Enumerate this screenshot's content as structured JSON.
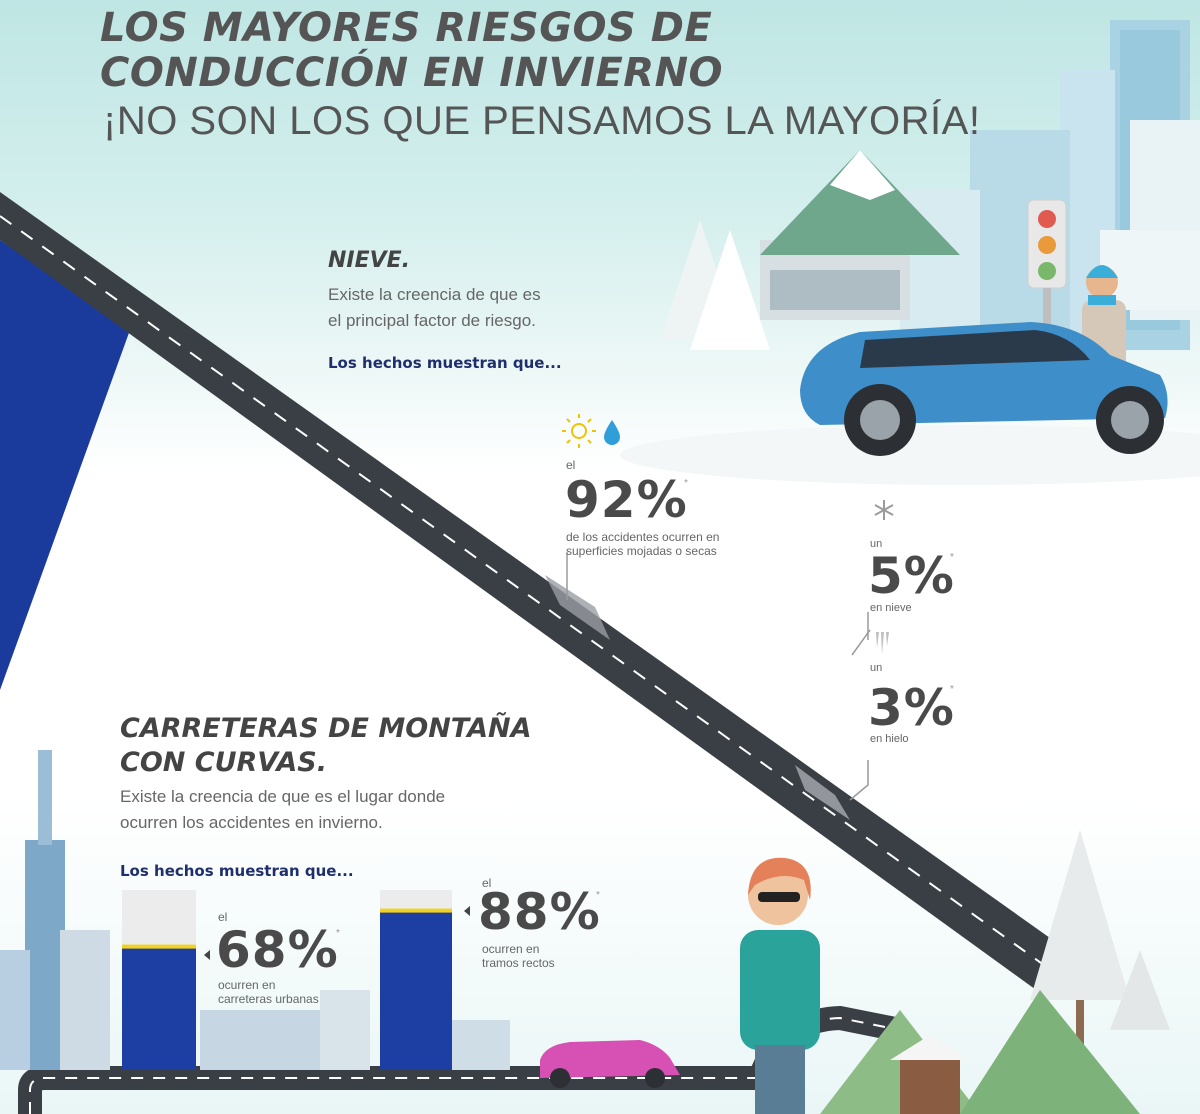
{
  "header": {
    "title_line1": "LOS MAYORES RIESGOS DE",
    "title_line2": "CONDUCCIÓN EN INVIERNO",
    "subtitle": "¡NO SON LOS QUE PENSAMOS LA MAYORÍA!"
  },
  "section_snow": {
    "heading": "NIEVE.",
    "belief_line1": "Existe la creencia de que es",
    "belief_line2": "el principal factor de riesgo.",
    "facts_label": "Los hechos muestran que...",
    "stat_main": {
      "prefix": "el",
      "value": "92%",
      "asterisk": "*",
      "desc_line1": "de los accidentes ocurren en",
      "desc_line2": "superficies mojadas o secas",
      "icons": [
        "sun-icon",
        "water-drop-icon"
      ]
    },
    "stat_snow": {
      "prefix": "un",
      "value": "5%",
      "asterisk": "*",
      "desc": "en nieve",
      "icon": "snowflake-icon"
    },
    "stat_ice": {
      "prefix": "un",
      "value": "3%",
      "asterisk": "*",
      "desc": "en hielo",
      "icon": "icicle-icon"
    }
  },
  "section_mountain": {
    "heading_line1": "CARRETERAS DE MONTAÑA",
    "heading_line2": "CON CURVAS.",
    "belief_line1": "Existe la creencia de que es el lugar donde",
    "belief_line2": "ocurren los accidentes en invierno.",
    "facts_label": "Los hechos muestran que...",
    "stat_urban": {
      "prefix": "el",
      "value": "68%",
      "asterisk": "*",
      "desc_line1": "ocurren en",
      "desc_line2": "carreteras urbanas",
      "fill": 0.68
    },
    "stat_straight": {
      "prefix": "el",
      "value": "88%",
      "asterisk": "*",
      "desc_line1": "ocurren en",
      "desc_line2": "tramos rectos",
      "fill": 0.88
    }
  },
  "colors": {
    "brand_blue": "#1b3b9c",
    "bar_blue": "#1d3ea3",
    "bar_marker": "#f2d21b",
    "bar_track": "#ececec",
    "road": "#3a3f45",
    "car_blue": "#3e8fc9",
    "car_pink": "#d651b3"
  }
}
